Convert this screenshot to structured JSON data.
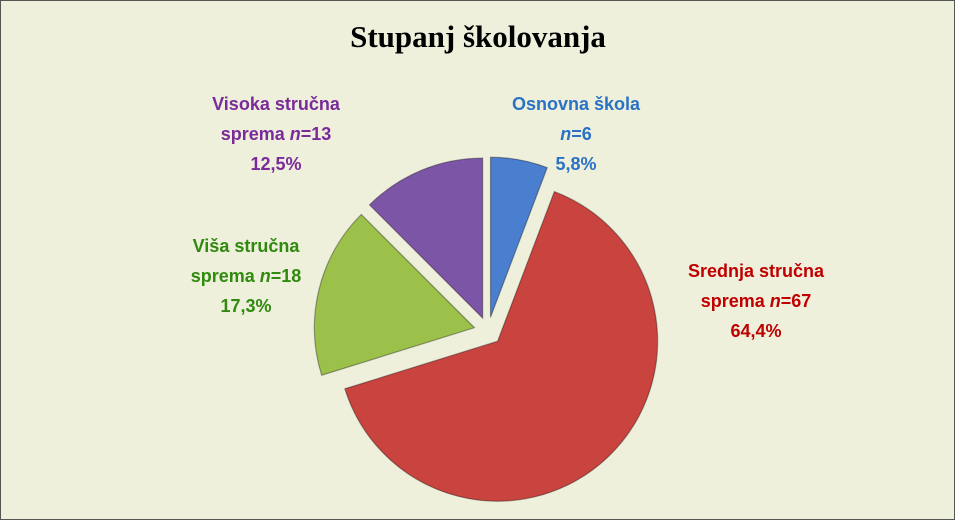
{
  "chart_data": {
    "type": "pie",
    "title": "Stupanj školovanja",
    "categories": [
      "Osnovna škola",
      "Srednja stručna sprema",
      "Viša stručna sprema",
      "Visoka stručna sprema"
    ],
    "values": [
      6,
      67,
      18,
      13
    ],
    "value_labels": [
      "n=6",
      "n=67",
      "n=18",
      "n=13"
    ],
    "percentages": [
      5.8,
      64.4,
      17.3,
      12.5
    ],
    "percentage_labels": [
      "5,8%",
      "64,4%",
      "17,3%",
      "12,5%"
    ],
    "colors": [
      "#4a7fd0",
      "#c9433f",
      "#9cc14b",
      "#7d55a6"
    ],
    "label_colors": [
      "#2a72c4",
      "#c00000",
      "#2f8a0e",
      "#7a2a9a"
    ]
  }
}
